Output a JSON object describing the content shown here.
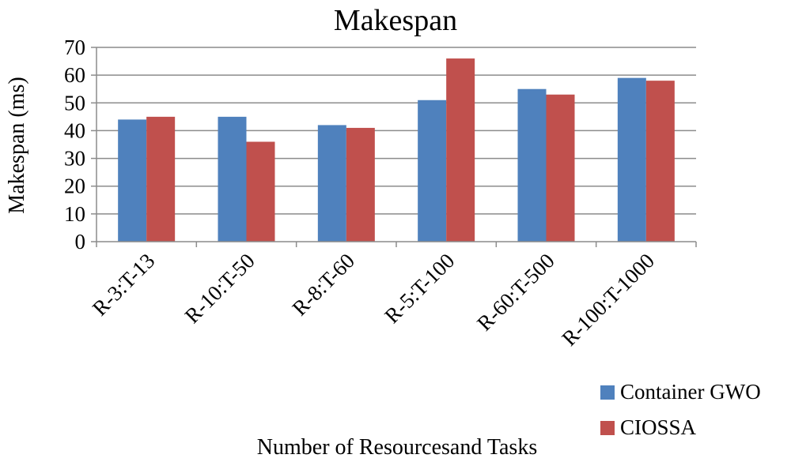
{
  "chart_data": {
    "type": "bar",
    "title": "Makespan",
    "xlabel": "Number of Resourcesand Tasks",
    "ylabel": "Makespan (ms)",
    "ylim": [
      0,
      70
    ],
    "yticks": [
      0,
      10,
      20,
      30,
      40,
      50,
      60,
      70
    ],
    "grid": true,
    "legend": "bottom-right",
    "categories": [
      "R-3:T-13",
      "R-10:T-50",
      "R-8:T-60",
      "R-5:T-100",
      "R-60:T-500",
      "R-100:T-1000"
    ],
    "series": [
      {
        "name": "Container GWO",
        "color": "#4f81bd",
        "values": [
          44,
          45,
          42,
          51,
          55,
          59
        ]
      },
      {
        "name": "CIOSSA",
        "color": "#c0504d",
        "values": [
          45,
          36,
          41,
          66,
          53,
          58
        ]
      }
    ]
  }
}
